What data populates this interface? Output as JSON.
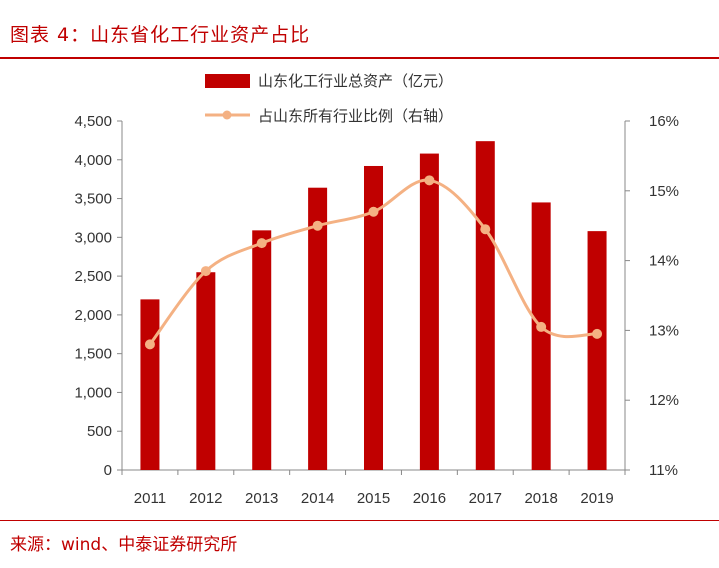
{
  "header": {
    "title": "图表 4：山东省化工行业资产占比"
  },
  "footer": {
    "source": "来源：wind、中泰证券研究所"
  },
  "chart_data": {
    "type": "bar",
    "categories": [
      "2011",
      "2012",
      "2013",
      "2014",
      "2015",
      "2016",
      "2017",
      "2018",
      "2019"
    ],
    "series": [
      {
        "name": "山东化工行业总资产（亿元）",
        "type": "bar",
        "axis": "left",
        "color": "#c00000",
        "values": [
          2200,
          2550,
          3090,
          3640,
          3920,
          4080,
          4240,
          3450,
          3080
        ]
      },
      {
        "name": "占山东所有行业比例（右轴）",
        "type": "line",
        "axis": "right",
        "color": "#f4b183",
        "values": [
          12.8,
          13.85,
          14.25,
          14.5,
          14.7,
          15.15,
          14.45,
          13.05,
          12.95
        ]
      }
    ],
    "y_left": {
      "min": 0,
      "max": 4500,
      "ticks": [
        "0",
        "500",
        "1,000",
        "1,500",
        "2,000",
        "2,500",
        "3,000",
        "3,500",
        "4,000",
        "4,500"
      ]
    },
    "y_right": {
      "min": 11,
      "max": 16,
      "ticks": [
        "11%",
        "12%",
        "13%",
        "14%",
        "15%",
        "16%"
      ]
    },
    "grid": false,
    "legend": "top-center"
  }
}
